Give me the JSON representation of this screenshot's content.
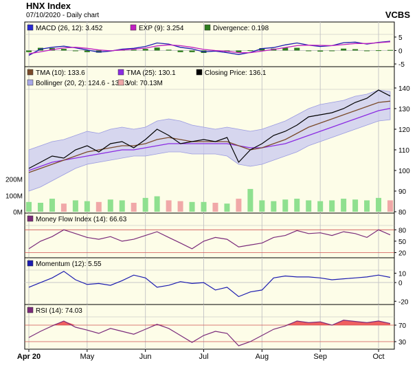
{
  "header": {
    "title": "HNX Index",
    "subtitle": "07/10/2020 - Daily chart",
    "brand": "VCBS"
  },
  "colors": {
    "panel_bg": "#fdfde8",
    "grid": "#c8c8c8",
    "macd": "#1c1cb0",
    "exp": "#c020c0",
    "divergence": "#2e7d1e",
    "tma10": "#7a4a2a",
    "tma25": "#8a2be2",
    "close": "#000000",
    "bollinger_fill": "#c8c8f0",
    "vol_up": "#8fe08f",
    "vol_down": "#f0a8a8",
    "mfi": "#7a2a7a",
    "momentum": "#1c1cb0",
    "rsi": "#7a2a7a",
    "rsi_fill": "#f06060",
    "ref_line": "#d05050"
  },
  "chart_data": [
    {
      "type": "line",
      "panel": "macd",
      "legend": [
        {
          "label": "MACD (26, 12): 3.452",
          "color": "#2a2ad0"
        },
        {
          "label": "EXP (9): 3.254",
          "color": "#c020c0"
        },
        {
          "label": "Divergence: 0.198",
          "color": "#2e7d1e"
        }
      ],
      "y_ticks": [
        "5",
        "0",
        "-5"
      ],
      "ylim": [
        -5.5,
        6
      ],
      "series": [
        {
          "key": "macd",
          "values": [
            -1.8,
            0.5,
            1.2,
            1.6,
            1.0,
            0.2,
            -0.6,
            -0.2,
            0.5,
            0.8,
            1.5,
            2.8,
            2.4,
            1.2,
            0.6,
            -0.5,
            -0.2,
            -0.8,
            -1.5,
            -0.7,
            0.7,
            1.1,
            2.1,
            2.8,
            2.0,
            1.5,
            1.8,
            2.9,
            3.1,
            2.4,
            3.0,
            3.45
          ]
        },
        {
          "key": "exp",
          "values": [
            -1.2,
            -0.5,
            0.3,
            1.0,
            1.2,
            0.8,
            0.2,
            -0.1,
            0.2,
            0.5,
            0.9,
            1.7,
            2.1,
            1.8,
            1.2,
            0.4,
            0.0,
            -0.3,
            -0.8,
            -0.8,
            -0.2,
            0.4,
            1.1,
            1.8,
            2.0,
            1.9,
            1.8,
            2.2,
            2.6,
            2.6,
            2.9,
            3.25
          ]
        },
        {
          "key": "divergence",
          "values": [
            -0.6,
            1.0,
            0.9,
            0.6,
            -0.2,
            -0.6,
            -0.8,
            -0.1,
            0.3,
            0.3,
            0.6,
            1.1,
            0.3,
            -0.6,
            -0.6,
            -0.9,
            -0.2,
            -0.5,
            -0.7,
            0.1,
            0.9,
            0.7,
            1.0,
            1.0,
            0.0,
            -0.4,
            0.0,
            0.7,
            0.5,
            -0.2,
            0.1,
            0.2
          ]
        }
      ]
    },
    {
      "type": "line",
      "panel": "price",
      "legend": [
        {
          "label": "TMA (10): 133.6",
          "color": "#7a4a2a"
        },
        {
          "label": "TMA (25): 130.1",
          "color": "#8a2be2"
        },
        {
          "label": "Closing Price: 136.1",
          "color": "#000000"
        },
        {
          "label": "Bollinger (20, 2): 124.6 - 138.3",
          "color": "#a8a8e8"
        },
        {
          "label": "Vol: 70.13M",
          "color": "#f0a8a8"
        }
      ],
      "y_ticks": [
        "140",
        "130",
        "120",
        "110",
        "100",
        "90",
        "80"
      ],
      "ylim": [
        80,
        140
      ],
      "vol_ticks": [
        "200M",
        "100M",
        "0M"
      ],
      "series": [
        {
          "key": "close",
          "values": [
            101,
            104,
            107,
            106,
            110,
            112,
            109,
            113,
            114,
            111,
            115,
            120,
            117,
            113,
            114,
            115,
            114,
            116,
            104,
            110,
            113,
            117,
            119,
            122,
            126,
            127,
            128,
            130,
            133,
            135,
            139,
            136.1
          ]
        },
        {
          "key": "tma10",
          "values": [
            99,
            101,
            103,
            105,
            107,
            109,
            110,
            111,
            112,
            112,
            113,
            115,
            116,
            115,
            114,
            114,
            114,
            114,
            112,
            110,
            111,
            113,
            115,
            118,
            121,
            123,
            125,
            127,
            129,
            131,
            133,
            133.6
          ]
        },
        {
          "key": "tma25",
          "values": [
            100,
            102,
            104,
            105,
            106,
            107,
            108,
            109,
            110,
            110,
            111,
            112,
            113,
            113,
            113,
            113,
            113,
            113,
            112,
            111,
            111,
            112,
            113,
            115,
            117,
            119,
            121,
            123,
            125,
            127,
            129,
            130.1
          ]
        },
        {
          "key": "boll_upper",
          "values": [
            110,
            112,
            114,
            115,
            117,
            119,
            118,
            120,
            121,
            120,
            121,
            124,
            125,
            124,
            122,
            121,
            120,
            121,
            120,
            119,
            120,
            122,
            124,
            127,
            130,
            132,
            133,
            134,
            136,
            137,
            139,
            138.3
          ]
        },
        {
          "key": "boll_lower",
          "values": [
            90,
            92,
            95,
            98,
            101,
            103,
            104,
            105,
            106,
            107,
            107,
            108,
            109,
            109,
            108,
            108,
            108,
            107,
            103,
            102,
            103,
            105,
            107,
            109,
            112,
            114,
            116,
            118,
            120,
            122,
            124,
            124.6
          ]
        }
      ],
      "volume": [
        60,
        55,
        80,
        50,
        70,
        65,
        60,
        75,
        70,
        55,
        85,
        95,
        70,
        65,
        60,
        60,
        55,
        50,
        80,
        140,
        70,
        65,
        75,
        80,
        70,
        65,
        70,
        80,
        75,
        70,
        85,
        70.13
      ]
    },
    {
      "type": "line",
      "panel": "mfi",
      "legend": [
        {
          "label": "Money Flow Index (14): 66.63",
          "color": "#7a2a7a"
        }
      ],
      "y_ticks": [
        "80",
        "50",
        "20"
      ],
      "ylim": [
        10,
        95
      ],
      "series": [
        {
          "key": "mfi",
          "values": [
            30,
            50,
            62,
            80,
            70,
            60,
            55,
            62,
            50,
            55,
            65,
            75,
            60,
            45,
            30,
            50,
            60,
            55,
            35,
            40,
            45,
            60,
            65,
            78,
            70,
            72,
            65,
            75,
            70,
            60,
            80,
            66.63
          ]
        }
      ]
    },
    {
      "type": "line",
      "panel": "momentum",
      "legend": [
        {
          "label": "Momentum (12): 5.55",
          "color": "#1c1cb0"
        }
      ],
      "y_ticks": [
        "10",
        "0",
        "-20"
      ],
      "ylim": [
        -22,
        14
      ],
      "series": [
        {
          "key": "momentum",
          "values": [
            -5,
            0,
            5,
            12,
            3,
            -2,
            -1,
            -3,
            2,
            8,
            5,
            -5,
            -3,
            1,
            -1,
            0,
            -8,
            -5,
            -15,
            -10,
            -8,
            5,
            7,
            6,
            6,
            5,
            3,
            4,
            5,
            6,
            8,
            5.55
          ]
        }
      ]
    },
    {
      "type": "area",
      "panel": "rsi",
      "legend": [
        {
          "label": "RSI (14): 74.03",
          "color": "#7a2a7a"
        }
      ],
      "y_ticks": [
        "70",
        "30"
      ],
      "ylim": [
        15,
        95
      ],
      "series": [
        {
          "key": "rsi",
          "values": [
            40,
            55,
            68,
            80,
            65,
            58,
            50,
            62,
            55,
            48,
            60,
            72,
            62,
            45,
            28,
            45,
            55,
            50,
            20,
            30,
            45,
            60,
            68,
            80,
            76,
            78,
            70,
            82,
            79,
            76,
            80,
            74.03
          ]
        }
      ]
    }
  ],
  "x_axis": {
    "labels": [
      "Apr 20",
      "May",
      "Jun",
      "Jul",
      "Aug",
      "Sep",
      "Oct"
    ]
  }
}
